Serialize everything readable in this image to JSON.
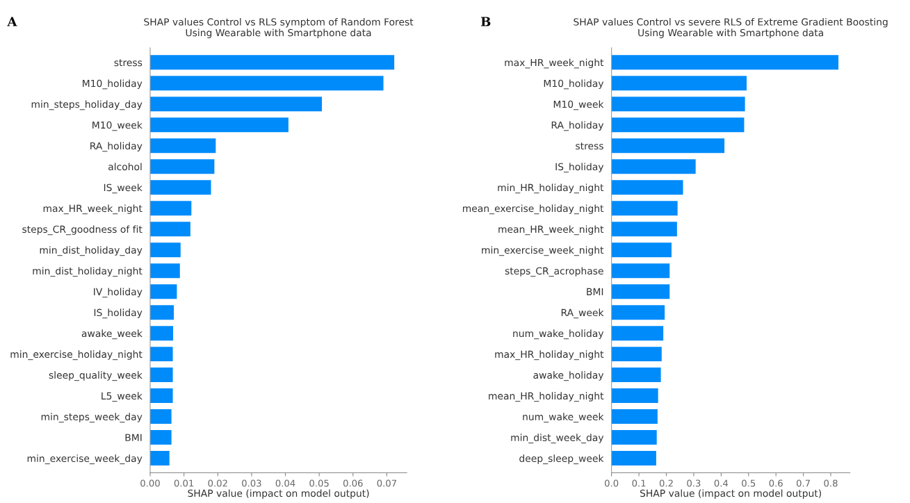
{
  "chart_data": [
    {
      "type": "bar",
      "orientation": "horizontal",
      "title": "SHAP values Control vs RLS symptom of Random Forest\nUsing Wearable with Smartphone data",
      "xlabel": "SHAP value (impact on model output)",
      "annotations": [
        "A"
      ],
      "categories": [
        "stress",
        "M10_holiday",
        "min_steps_holiday_day",
        "M10_week",
        "RA_holiday",
        "alcohol",
        "IS_week",
        "max_HR_week_night",
        "steps_CR_goodness of fit",
        "min_dist_holiday_day",
        "min_dist_holiday_night",
        "IV_holiday",
        "IS_holiday",
        "awake_week",
        "min_exercise_holiday_night",
        "sleep_quality_week",
        "L5_week",
        "min_steps_week_day",
        "BMI",
        "min_exercise_week_day"
      ],
      "values": [
        0.0722,
        0.069,
        0.0508,
        0.0409,
        0.0194,
        0.019,
        0.018,
        0.0122,
        0.0119,
        0.009,
        0.0088,
        0.0079,
        0.007,
        0.0068,
        0.0067,
        0.0067,
        0.0067,
        0.0063,
        0.0063,
        0.0057
      ],
      "color": "#008bfb",
      "xlim": [
        0,
        0.0759
      ],
      "xticks": [
        {
          "value": 0,
          "label": "0.00"
        },
        0.01,
        0.02,
        0.03,
        0.04,
        0.05,
        0.06,
        0.07
      ],
      "grid": false,
      "legend": false
    },
    {
      "type": "bar",
      "orientation": "horizontal",
      "title": "SHAP values Control vs severe RLS of Extreme Gradient Boosting\nUsing Wearable with Smartphone data",
      "xlabel": "SHAP value (impact on model output)",
      "annotations": [
        "B"
      ],
      "categories": [
        "max_HR_week_night",
        "M10_holiday",
        "M10_week",
        "RA_holiday",
        "stress",
        "IS_holiday",
        "min_HR_holiday_night",
        "mean_exercise_holiday_night",
        "mean_HR_week_night",
        "min_exercise_week_night",
        "steps_CR_acrophase",
        "BMI",
        "RA_week",
        "num_wake_holiday",
        "max_HR_holiday_night",
        "awake_holiday",
        "mean_HR_holiday_night",
        "num_wake_week",
        "min_dist_week_day",
        "deep_sleep_week"
      ],
      "values": [
        0.828,
        0.493,
        0.487,
        0.484,
        0.412,
        0.307,
        0.261,
        0.241,
        0.239,
        0.219,
        0.212,
        0.212,
        0.194,
        0.189,
        0.183,
        0.18,
        0.17,
        0.168,
        0.165,
        0.163
      ],
      "color": "#008bfb",
      "xlim": [
        0,
        0.87
      ],
      "xticks": [
        {
          "value": 0,
          "label": "0.0"
        },
        0.1,
        0.2,
        0.3,
        0.4,
        0.5,
        0.6,
        0.7,
        0.8
      ],
      "grid": false,
      "legend": false
    }
  ]
}
